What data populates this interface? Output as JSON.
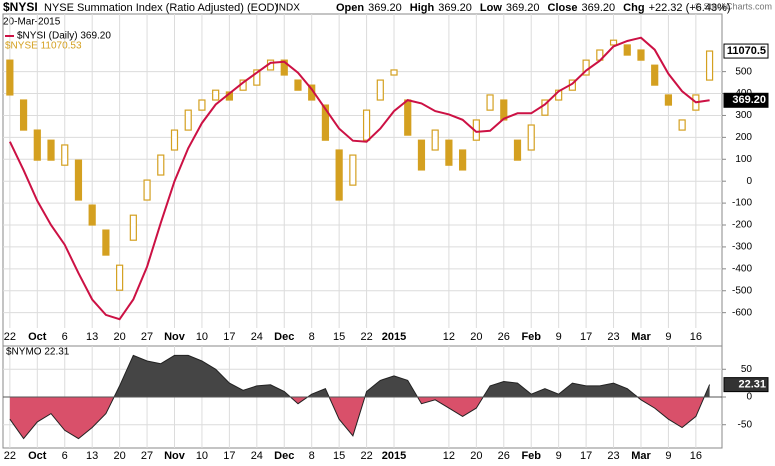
{
  "chart_data": [
    {
      "type": "candlestick",
      "symbol": "$NYSI",
      "title": "NYSE Summation Index (Ratio Adjusted) (EOD)",
      "exchange": "INDX",
      "date": "20-Mar-2015",
      "quote": [
        {
          "label": "Open",
          "value": "369.20"
        },
        {
          "label": "High",
          "value": "369.20"
        },
        {
          "label": "Low",
          "value": "369.20"
        },
        {
          "label": "Close",
          "value": "369.20"
        },
        {
          "label": "Chg",
          "value": "+22.32 (+6.43%)"
        }
      ],
      "credit": "© StockCharts.com",
      "categories": [
        "22",
        null,
        "Oct",
        null,
        "6",
        null,
        "13",
        null,
        "20",
        null,
        "27",
        null,
        "Nov",
        null,
        "10",
        null,
        "17",
        null,
        "24",
        null,
        "Dec",
        null,
        "8",
        null,
        "15",
        null,
        "22",
        null,
        "2015",
        null,
        null,
        null,
        "12",
        null,
        "20",
        null,
        "26",
        null,
        "Feb",
        null,
        "9",
        null,
        "17",
        null,
        "23",
        null,
        "Mar",
        null,
        "9",
        null,
        "16",
        null
      ],
      "ylim": [
        -670,
        763
      ],
      "yticks": [
        -600,
        -500,
        -400,
        -300,
        -200,
        -100,
        0,
        100,
        200,
        300,
        400,
        500
      ],
      "y2lim": [
        10140,
        11195
      ],
      "grid": true,
      "series": [
        {
          "name": "$NYSE 11070.53",
          "type": "candlestick",
          "axis": "y2",
          "color": "#d4a020",
          "open": [
            11040,
            10906,
            10805,
            10771,
            10687,
            10704,
            10553,
            10469,
            10267,
            10435,
            10570,
            10654,
            10738,
            10805,
            10872,
            10906,
            10933,
            10939,
            10956,
            11007,
            11040,
            10973,
            10956,
            10889,
            10738,
            10620,
            10771,
            10906,
            10990,
            10906,
            10771,
            10738,
            10771,
            10738,
            10771,
            10872,
            10906,
            10771,
            10738,
            10855,
            10906,
            10939,
            10990,
            11040,
            11091,
            11091,
            11074,
            11023,
            10923,
            10805,
            10872,
            10973
          ],
          "close": [
            10923,
            10805,
            10704,
            10704,
            10755,
            10570,
            10486,
            10385,
            10351,
            10519,
            10637,
            10721,
            10805,
            10872,
            10906,
            10939,
            10906,
            10973,
            11007,
            11040,
            10990,
            10939,
            10906,
            10771,
            10570,
            10721,
            10872,
            10973,
            11007,
            10788,
            10671,
            10805,
            10687,
            10671,
            10839,
            10923,
            10839,
            10704,
            10822,
            10906,
            10939,
            10973,
            11040,
            11074,
            11107,
            11057,
            11040,
            10956,
            10889,
            10839,
            10923,
            11070.5
          ],
          "close_labels": [
            null,
            null,
            null,
            null,
            null,
            null,
            null,
            null,
            null,
            null,
            null,
            null,
            null,
            null,
            null,
            null,
            null,
            null,
            null,
            null,
            null,
            null,
            null,
            null,
            null,
            null,
            null,
            null,
            null,
            null,
            null,
            null,
            null,
            null,
            null,
            null,
            null,
            null,
            null,
            null,
            null,
            null,
            null,
            null,
            null,
            null,
            null,
            null,
            null,
            null,
            null,
            "11070.5"
          ]
        },
        {
          "name": "$NYSI (Daily) 369.20",
          "type": "line",
          "color": "#cc1144",
          "values": [
            180,
            50,
            -90,
            -200,
            -290,
            -420,
            -540,
            -610,
            -630,
            -540,
            -390,
            -190,
            0,
            150,
            265,
            350,
            400,
            450,
            495,
            540,
            545,
            495,
            420,
            330,
            240,
            185,
            180,
            240,
            320,
            370,
            355,
            320,
            305,
            280,
            225,
            230,
            285,
            310,
            310,
            350,
            410,
            445,
            505,
            550,
            615,
            640,
            655,
            600,
            490,
            410,
            360,
            369.2
          ],
          "value_labels": [
            null,
            null,
            null,
            null,
            null,
            null,
            null,
            null,
            null,
            null,
            null,
            null,
            null,
            null,
            null,
            null,
            null,
            null,
            null,
            null,
            null,
            null,
            null,
            null,
            null,
            null,
            null,
            null,
            null,
            null,
            null,
            null,
            null,
            null,
            null,
            null,
            null,
            null,
            null,
            null,
            null,
            null,
            null,
            null,
            null,
            null,
            null,
            null,
            null,
            null,
            null,
            "369.20"
          ]
        }
      ]
    },
    {
      "type": "area",
      "ylim": [
        -92,
        92
      ],
      "yticks": [
        -50,
        0,
        50
      ],
      "grid": true,
      "series": [
        {
          "name": "$NYMO 22.31",
          "positive_color": "#454545",
          "negative_color": "#d9506a",
          "values": [
            -40,
            -75,
            -45,
            -30,
            -60,
            -75,
            -55,
            -30,
            20,
            75,
            65,
            60,
            75,
            75,
            65,
            50,
            25,
            12,
            20,
            22,
            10,
            -12,
            5,
            15,
            -40,
            -70,
            10,
            30,
            38,
            30,
            -12,
            -5,
            -20,
            -35,
            -20,
            20,
            28,
            25,
            5,
            15,
            5,
            25,
            20,
            20,
            25,
            15,
            -5,
            -20,
            -40,
            -55,
            -35,
            22.31
          ],
          "value_labels": [
            null,
            null,
            null,
            null,
            null,
            null,
            null,
            null,
            null,
            null,
            null,
            null,
            null,
            null,
            null,
            null,
            null,
            null,
            null,
            null,
            null,
            null,
            null,
            null,
            null,
            null,
            null,
            null,
            null,
            null,
            null,
            null,
            null,
            null,
            null,
            null,
            null,
            null,
            null,
            null,
            null,
            null,
            null,
            null,
            null,
            null,
            null,
            null,
            null,
            null,
            null,
            "22.31"
          ]
        }
      ]
    }
  ]
}
